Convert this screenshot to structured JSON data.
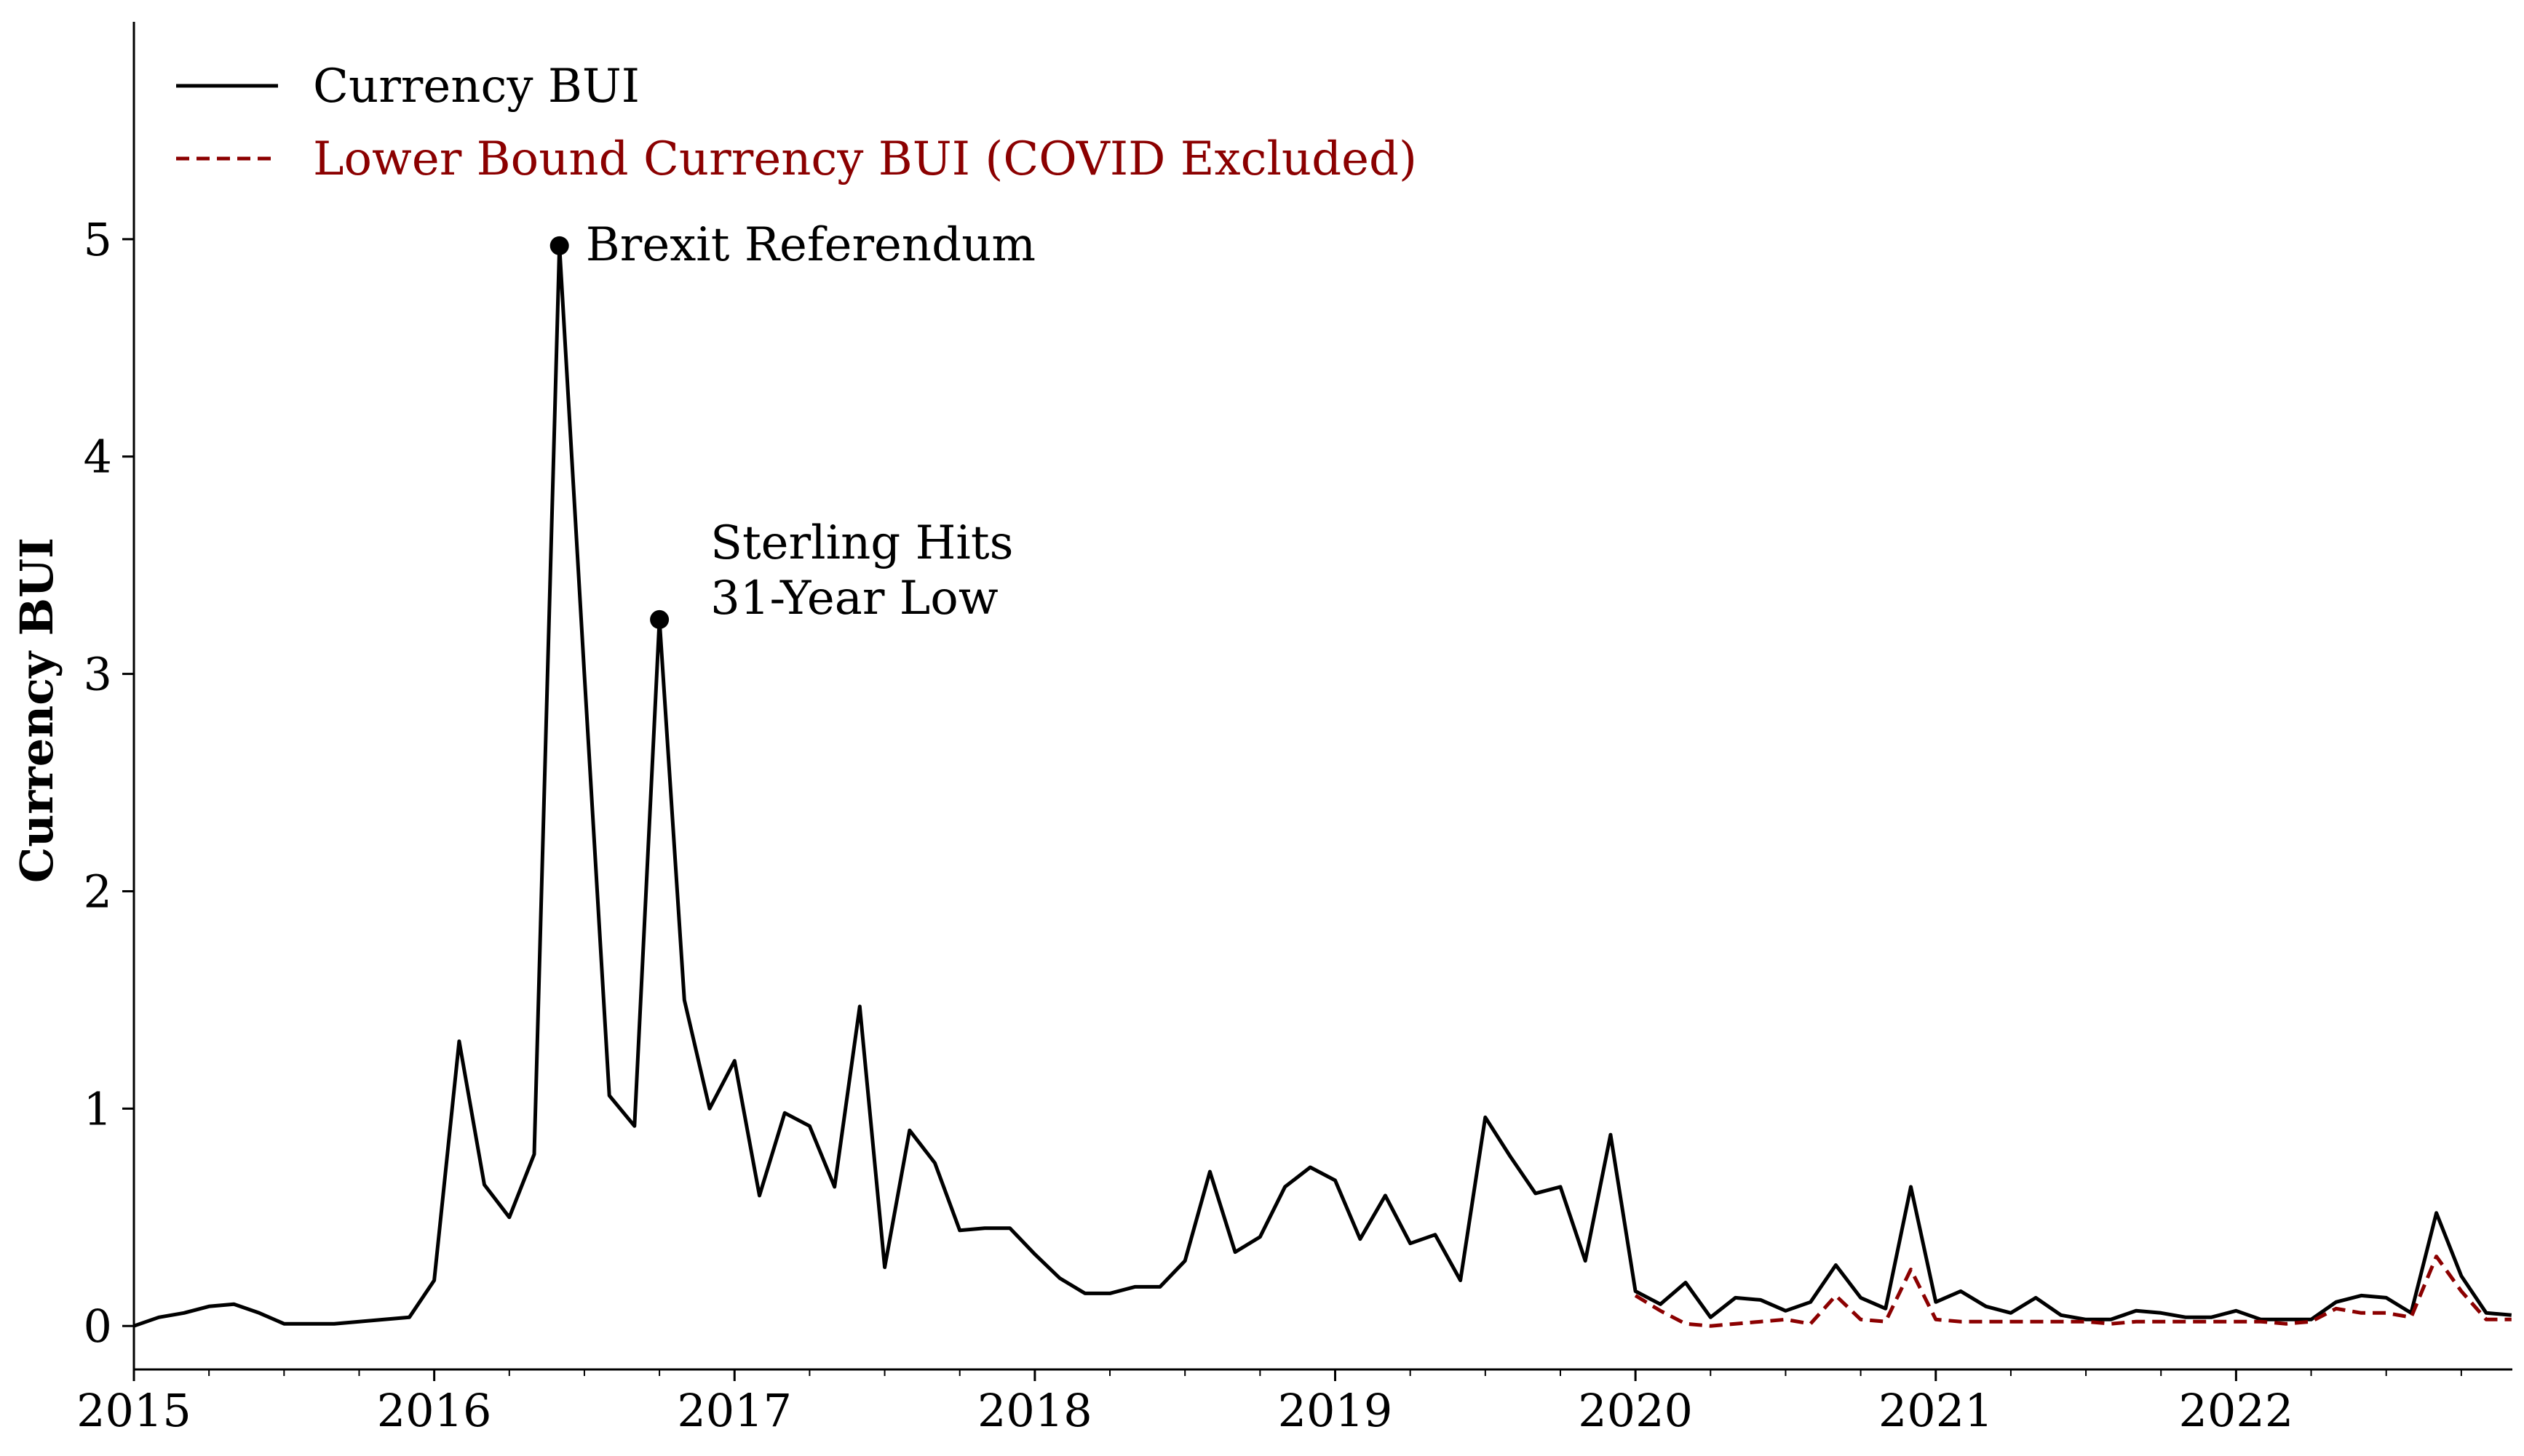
{
  "chart_data": {
    "type": "line",
    "xlabel": "",
    "ylabel": "Currency BUI",
    "xlim": [
      2015.0,
      2022.92
    ],
    "ylim": [
      -0.2,
      6.0
    ],
    "yticks": [
      0,
      1,
      2,
      3,
      4,
      5
    ],
    "xticks": [
      2015,
      2016,
      2017,
      2018,
      2019,
      2020,
      2021,
      2022
    ],
    "grid": false,
    "legend_position": "upper-left",
    "series": [
      {
        "name": "Currency BUI",
        "color": "#000000",
        "style": "solid",
        "x": [
          2015.0,
          2015.083,
          2015.167,
          2015.25,
          2015.333,
          2015.417,
          2015.5,
          2015.583,
          2015.667,
          2015.75,
          2015.833,
          2015.917,
          2016.0,
          2016.083,
          2016.167,
          2016.25,
          2016.333,
          2016.417,
          2016.5,
          2016.583,
          2016.667,
          2016.75,
          2016.833,
          2016.917,
          2017.0,
          2017.083,
          2017.167,
          2017.25,
          2017.333,
          2017.417,
          2017.5,
          2017.583,
          2017.667,
          2017.75,
          2017.833,
          2017.917,
          2018.0,
          2018.083,
          2018.167,
          2018.25,
          2018.333,
          2018.417,
          2018.5,
          2018.583,
          2018.667,
          2018.75,
          2018.833,
          2018.917,
          2019.0,
          2019.083,
          2019.167,
          2019.25,
          2019.333,
          2019.417,
          2019.5,
          2019.583,
          2019.667,
          2019.75,
          2019.833,
          2019.917,
          2020.0,
          2020.083,
          2020.167,
          2020.25,
          2020.333,
          2020.417,
          2020.5,
          2020.583,
          2020.667,
          2020.75,
          2020.833,
          2020.917,
          2021.0,
          2021.083,
          2021.167,
          2021.25,
          2021.333,
          2021.417,
          2021.5,
          2021.583,
          2021.667,
          2021.75,
          2021.833,
          2021.917,
          2022.0,
          2022.083,
          2022.167,
          2022.25,
          2022.333,
          2022.417,
          2022.5,
          2022.583,
          2022.667,
          2022.75,
          2022.833,
          2022.917
        ],
        "values": [
          0.0,
          0.04,
          0.06,
          0.09,
          0.1,
          0.06,
          0.01,
          0.01,
          0.01,
          0.02,
          0.03,
          0.04,
          0.21,
          1.31,
          0.65,
          0.5,
          0.79,
          4.97,
          3.0,
          1.06,
          0.92,
          3.25,
          1.5,
          1.0,
          1.22,
          0.6,
          0.98,
          0.92,
          0.64,
          1.47,
          0.27,
          0.9,
          0.75,
          0.44,
          0.45,
          0.45,
          0.33,
          0.22,
          0.15,
          0.15,
          0.18,
          0.18,
          0.3,
          0.71,
          0.34,
          0.41,
          0.64,
          0.73,
          0.67,
          0.4,
          0.6,
          0.38,
          0.42,
          0.21,
          0.96,
          0.78,
          0.61,
          0.64,
          0.3,
          0.88,
          0.16,
          0.1,
          0.2,
          0.04,
          0.13,
          0.12,
          0.07,
          0.11,
          0.28,
          0.13,
          0.08,
          0.64,
          0.11,
          0.16,
          0.09,
          0.06,
          0.13,
          0.05,
          0.03,
          0.03,
          0.07,
          0.06,
          0.04,
          0.04,
          0.07,
          0.03,
          0.03,
          0.03,
          0.11,
          0.14,
          0.13,
          0.06,
          0.52,
          0.23,
          0.06,
          0.05
        ]
      },
      {
        "name": "Lower Bound Currency BUI (COVID Excluded)",
        "color": "#8b0000",
        "style": "dashed",
        "x": [
          2020.0,
          2020.083,
          2020.167,
          2020.25,
          2020.333,
          2020.417,
          2020.5,
          2020.583,
          2020.667,
          2020.75,
          2020.833,
          2020.917,
          2021.0,
          2021.083,
          2021.167,
          2021.25,
          2021.333,
          2021.417,
          2021.5,
          2021.583,
          2021.667,
          2021.75,
          2021.833,
          2021.917,
          2022.0,
          2022.083,
          2022.167,
          2022.25,
          2022.333,
          2022.417,
          2022.5,
          2022.583,
          2022.667,
          2022.75,
          2022.833,
          2022.917
        ],
        "values": [
          0.14,
          0.07,
          0.01,
          0.0,
          0.01,
          0.02,
          0.03,
          0.01,
          0.14,
          0.03,
          0.02,
          0.26,
          0.03,
          0.02,
          0.02,
          0.02,
          0.02,
          0.02,
          0.02,
          0.01,
          0.02,
          0.02,
          0.02,
          0.02,
          0.02,
          0.02,
          0.01,
          0.02,
          0.08,
          0.06,
          0.06,
          0.04,
          0.32,
          0.16,
          0.03,
          0.03
        ]
      }
    ],
    "annotations": [
      {
        "text": "Brexit Referendum",
        "x": 2016.417,
        "y": 4.97
      },
      {
        "text": "Sterling Hits 31-Year Low",
        "lines": [
          "Sterling Hits",
          "31-Year Low"
        ],
        "x": 2016.75,
        "y": 3.25
      }
    ]
  }
}
